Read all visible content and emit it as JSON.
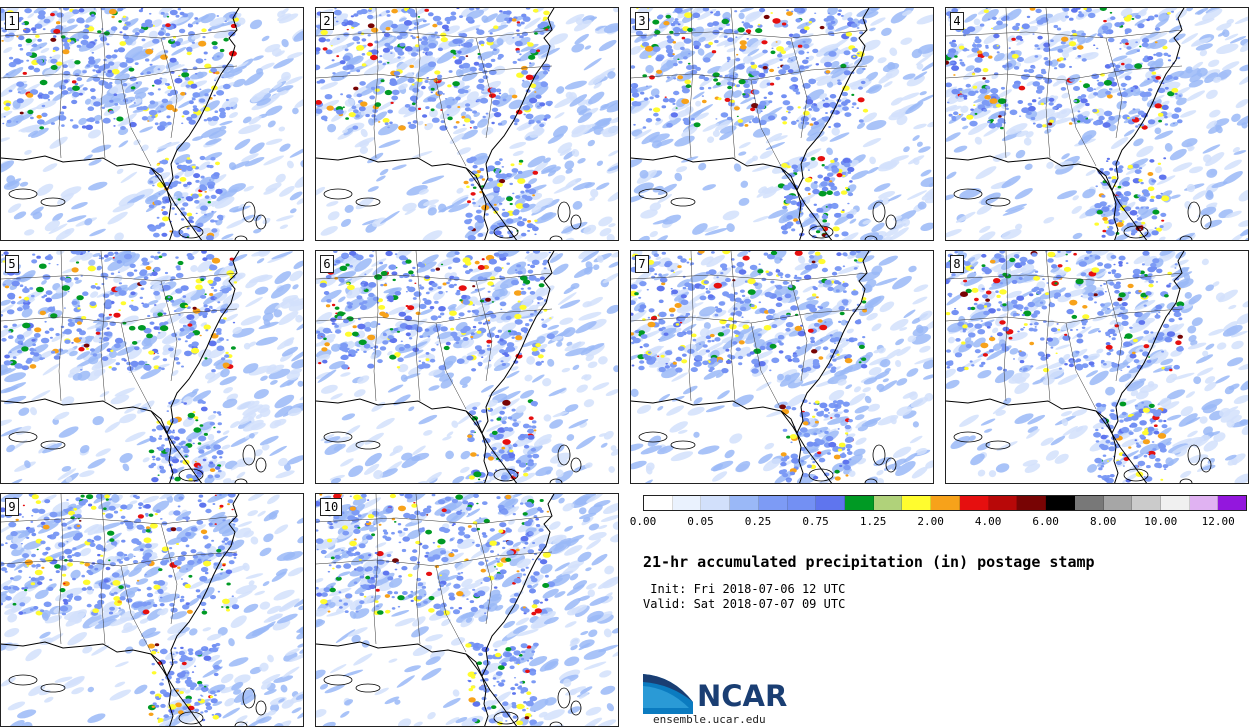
{
  "panels": [
    {
      "label": "1"
    },
    {
      "label": "2"
    },
    {
      "label": "3"
    },
    {
      "label": "4"
    },
    {
      "label": "5"
    },
    {
      "label": "6"
    },
    {
      "label": "7"
    },
    {
      "label": "8"
    },
    {
      "label": "9"
    },
    {
      "label": "10"
    }
  ],
  "colorbar": {
    "colors": [
      "#ffffff",
      "#eaf2fe",
      "#d2e0fb",
      "#9ab8f7",
      "#7d9bf5",
      "#7390f3",
      "#5f75ee",
      "#009a24",
      "#b0d27a",
      "#fffc2f",
      "#f7a21a",
      "#e60f0f",
      "#b80808",
      "#780404",
      "#000000",
      "#787878",
      "#a6a6a6",
      "#cbcbcb",
      "#f0f0f0",
      "#e0b2f2",
      "#9317dd"
    ],
    "ticks": [
      "0.00",
      "0.05",
      "0.25",
      "0.75",
      "1.25",
      "2.00",
      "4.00",
      "6.00",
      "8.00",
      "10.00",
      "12.00"
    ]
  },
  "title": "21-hr accumulated precipitation (in) postage stamp",
  "init_line": " Init: Fri 2018-07-06 12 UTC",
  "valid_line": "Valid: Sat 2018-07-07 09 UTC",
  "logo": {
    "text": "NCAR",
    "icon": "ncar-logo-icon",
    "color": "#1a3e73",
    "accent": "#0b7bc0"
  },
  "website": "ensemble.ucar.edu"
}
